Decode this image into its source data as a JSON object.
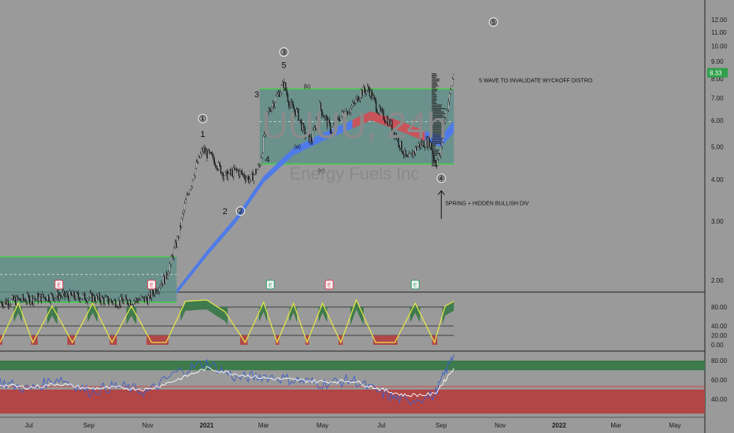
{
  "chart_data": [
    {
      "type": "candlestick",
      "title": "UUUU, 24h",
      "watermark_symbol": "UUUU, 24h",
      "watermark_company": "Energy Fuels Inc",
      "y_scale": "log",
      "ylim": [
        1.8,
        12.6
      ],
      "y_ticks": [
        "12.00",
        "11.00",
        "10.00",
        "9.00",
        "8.00",
        "7.00",
        "6.00",
        "5.00",
        "4.00",
        "3.00",
        "2.00"
      ],
      "x_ticks": [
        "Jul",
        "Sep",
        "Nov",
        "2021",
        "Mar",
        "May",
        "Jul",
        "Sep",
        "Nov",
        "2022",
        "Mar",
        "May"
      ],
      "price_label": "8.33",
      "price_points": [
        [
          "2020-06-01",
          1.72
        ],
        [
          "2020-07-01",
          1.76
        ],
        [
          "2020-08-01",
          1.8
        ],
        [
          "2020-09-01",
          1.78
        ],
        [
          "2020-10-01",
          1.72
        ],
        [
          "2020-11-01",
          1.76
        ],
        [
          "2020-11-20",
          2.05
        ],
        [
          "2020-12-01",
          2.6
        ],
        [
          "2020-12-10",
          3.4
        ],
        [
          "2020-12-20",
          4.3
        ],
        [
          "2020-12-28",
          4.9
        ],
        [
          "2021-01-08",
          4.6
        ],
        [
          "2021-01-20",
          4.1
        ],
        [
          "2021-02-01",
          4.25
        ],
        [
          "2021-02-15",
          4.0
        ],
        [
          "2021-02-25",
          4.4
        ],
        [
          "2021-03-05",
          6.3
        ],
        [
          "2021-03-15",
          7.1
        ],
        [
          "2021-03-22",
          7.75
        ],
        [
          "2021-03-28",
          6.7
        ],
        [
          "2021-04-05",
          6.3
        ],
        [
          "2021-04-12",
          5.5
        ],
        [
          "2021-04-20",
          5.2
        ],
        [
          "2021-04-28",
          6.6
        ],
        [
          "2021-05-10",
          5.6
        ],
        [
          "2021-05-20",
          6.2
        ],
        [
          "2021-06-01",
          6.6
        ],
        [
          "2021-06-10",
          7.3
        ],
        [
          "2021-06-18",
          7.45
        ],
        [
          "2021-06-28",
          6.4
        ],
        [
          "2021-07-10",
          5.9
        ],
        [
          "2021-07-20",
          5.1
        ],
        [
          "2021-07-28",
          4.55
        ],
        [
          "2021-08-08",
          5.05
        ],
        [
          "2021-08-20",
          5.2
        ],
        [
          "2021-08-26",
          4.45
        ],
        [
          "2021-08-31",
          4.75
        ],
        [
          "2021-09-05",
          6.2
        ],
        [
          "2021-09-10",
          7.2
        ],
        [
          "2021-09-14",
          8.33
        ]
      ],
      "moving_average_ribbon": [
        [
          "2020-12-01",
          1.85,
          "blue"
        ],
        [
          "2021-01-01",
          2.4,
          "blue"
        ],
        [
          "2021-02-01",
          3.05,
          "blue"
        ],
        [
          "2021-03-01",
          4.0,
          "blue"
        ],
        [
          "2021-04-01",
          4.85,
          "blue"
        ],
        [
          "2021-05-01",
          5.35,
          "blue"
        ],
        [
          "2021-06-01",
          5.85,
          "blue"
        ],
        [
          "2021-06-20",
          6.2,
          "red"
        ],
        [
          "2021-07-15",
          5.85,
          "red"
        ],
        [
          "2021-08-15",
          5.4,
          "red"
        ],
        [
          "2021-09-01",
          5.2,
          "blue"
        ],
        [
          "2021-09-14",
          5.75,
          "blue"
        ]
      ],
      "range_box": {
        "start": "2021-02-25",
        "end": "2021-09-14",
        "low": 4.45,
        "high": 7.45,
        "mid": 5.95
      },
      "lower_box": {
        "start": "2020-06-01",
        "end": "2020-12-01",
        "low": 1.72,
        "high": 2.35,
        "mid": 2.08
      },
      "wave_labels": [
        {
          "text": "1",
          "date": "2020-12-28",
          "price": 5.35,
          "style": "plain"
        },
        {
          "text": "①",
          "date": "2020-12-28",
          "price": 5.95,
          "style": "circled"
        },
        {
          "text": "2",
          "date": "2021-01-20",
          "price": 3.15,
          "style": "plain"
        },
        {
          "text": "②",
          "date": "2021-02-05",
          "price": 3.15,
          "style": "circled"
        },
        {
          "text": "3",
          "date": "2021-02-22",
          "price": 7.05,
          "style": "plain"
        },
        {
          "text": "③",
          "date": "2021-03-22",
          "price": 9.4,
          "style": "circled"
        },
        {
          "text": "5",
          "date": "2021-03-22",
          "price": 8.6,
          "style": "plain"
        },
        {
          "text": "4",
          "date": "2021-03-05",
          "price": 4.5,
          "style": "plain"
        },
        {
          "text": "(b)",
          "date": "2021-04-15",
          "price": 7.5,
          "style": "small"
        },
        {
          "text": "(a)",
          "date": "2021-04-05",
          "price": 4.95,
          "style": "small"
        },
        {
          "text": "(c)",
          "date": "2021-04-30",
          "price": 4.2,
          "style": "small"
        },
        {
          "text": "④",
          "date": "2021-09-01",
          "price": 3.95,
          "style": "circled"
        },
        {
          "text": "⑤",
          "date": "2021-10-25",
          "price": 11.55,
          "style": "circled"
        }
      ],
      "annotations": [
        {
          "text": "5 WAVE TO INVALIDATE WYCKOFF DISTRO",
          "date": "2021-10-10",
          "price": 7.8
        },
        {
          "text": "SPRING + HIDDEN BULLISH DIV",
          "date": "2021-09-05",
          "price": 3.35
        }
      ],
      "earnings_markers": [
        {
          "label": "E",
          "date": "2020-08-01",
          "color": "#e04050"
        },
        {
          "label": "E",
          "date": "2020-11-05",
          "color": "#e04050"
        },
        {
          "label": "E",
          "date": "2021-03-08",
          "color": "#2a9d6a"
        },
        {
          "label": "E",
          "date": "2021-05-08",
          "color": "#e04050"
        },
        {
          "label": "E",
          "date": "2021-08-05",
          "color": "#2a9d6a"
        }
      ],
      "arrow": {
        "date": "2021-09-01",
        "from_price": 3.05,
        "to_price": 3.7
      }
    },
    {
      "type": "area",
      "name": "oscillator",
      "y_ticks": [
        "80.00",
        "40.00",
        "20.00",
        "0.00"
      ],
      "ylim": [
        -5,
        100
      ],
      "levels": [
        80,
        40,
        20
      ],
      "x": [
        "2020-06-01",
        "2020-06-20",
        "2020-07-05",
        "2020-07-25",
        "2020-08-15",
        "2020-09-05",
        "2020-09-25",
        "2020-10-15",
        "2020-11-05",
        "2020-11-20",
        "2020-12-10",
        "2021-01-01",
        "2021-01-20",
        "2021-02-10",
        "2021-03-01",
        "2021-03-15",
        "2021-04-01",
        "2021-04-15",
        "2021-05-01",
        "2021-05-20",
        "2021-06-05",
        "2021-06-25",
        "2021-07-15",
        "2021-08-05",
        "2021-08-25",
        "2021-09-05",
        "2021-09-14"
      ],
      "values": [
        5,
        88,
        5,
        82,
        5,
        88,
        5,
        82,
        5,
        5,
        92,
        95,
        70,
        5,
        90,
        5,
        88,
        5,
        88,
        5,
        95,
        5,
        5,
        88,
        5,
        82,
        92
      ]
    },
    {
      "type": "line",
      "name": "rsi",
      "y_ticks": [
        "80.00",
        "60.00",
        "40.00"
      ],
      "ylim": [
        25,
        100
      ],
      "upper_band": [
        70,
        80
      ],
      "lower_band": [
        25,
        50
      ],
      "level": 53,
      "series": [
        {
          "color": "#3b5ec9",
          "x": [
            "2020-06-01",
            "2020-07-01",
            "2020-08-01",
            "2020-09-01",
            "2020-10-01",
            "2020-11-01",
            "2020-12-01",
            "2021-01-01",
            "2021-02-01",
            "2021-03-01",
            "2021-04-01",
            "2021-05-01",
            "2021-06-01",
            "2021-07-01",
            "2021-07-25",
            "2021-08-25",
            "2021-09-14"
          ],
          "values": [
            58,
            50,
            62,
            48,
            54,
            47,
            68,
            78,
            62,
            64,
            60,
            56,
            60,
            46,
            38,
            44,
            86
          ]
        },
        {
          "color": "#ffffff",
          "x": [
            "2020-06-01",
            "2020-07-01",
            "2020-08-01",
            "2020-09-01",
            "2020-10-01",
            "2020-11-01",
            "2020-12-01",
            "2021-01-01",
            "2021-02-01",
            "2021-03-01",
            "2021-04-01",
            "2021-05-01",
            "2021-06-01",
            "2021-07-01",
            "2021-07-25",
            "2021-08-25",
            "2021-09-14"
          ],
          "values": [
            55,
            52,
            56,
            51,
            52,
            50,
            60,
            72,
            66,
            62,
            60,
            58,
            59,
            50,
            44,
            45,
            72
          ]
        }
      ]
    }
  ],
  "colors": {
    "background": "#9a9a9a",
    "candle_up": "#ffffff",
    "candle_down": "#1a1a1a",
    "ribbon_blue": "#4f7be8",
    "ribbon_red": "#c8545a",
    "range_box": "#5f8f8a",
    "range_border": "#33dd33",
    "green_area": "#3d7a4c",
    "red_area": "#b24546",
    "osc_line": "#e4e44a"
  }
}
